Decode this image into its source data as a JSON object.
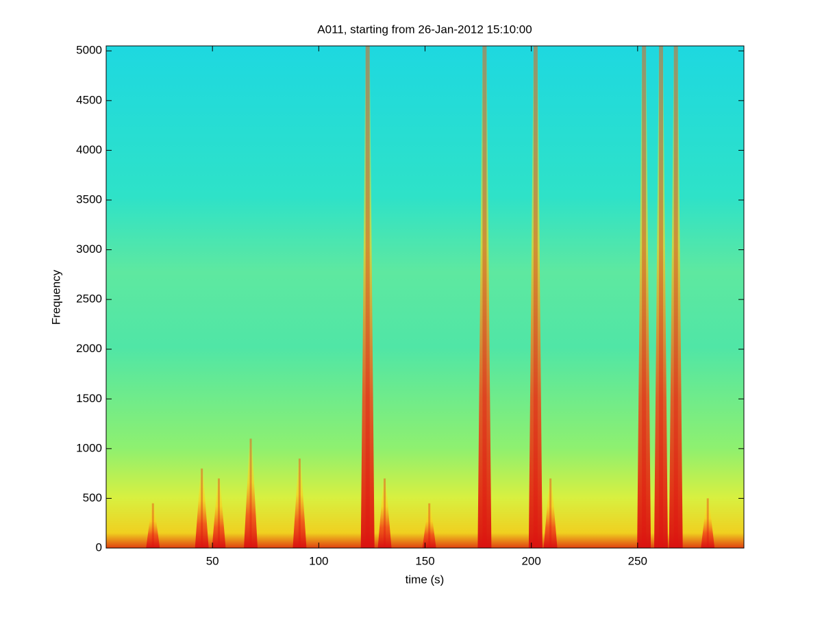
{
  "chart_data": {
    "type": "spectrogram",
    "title": "A011, starting from 26-Jan-2012 15:10:00",
    "x_label": "time (s)",
    "y_label": "Frequency",
    "xlim": [
      0,
      300
    ],
    "ylim": [
      0,
      5050
    ],
    "xticks": [
      50,
      100,
      150,
      200,
      250
    ],
    "yticks": [
      0,
      500,
      1000,
      1500,
      2000,
      2500,
      3000,
      3500,
      4000,
      4500,
      5000
    ],
    "color": "#e01010",
    "x": [
      22,
      45,
      53,
      68,
      91,
      123,
      131,
      152,
      178,
      202,
      209,
      253,
      261,
      268,
      283
    ],
    "values": [
      450,
      800,
      700,
      1100,
      900,
      5050,
      700,
      450,
      5050,
      5050,
      700,
      5050,
      5050,
      5050,
      500
    ]
  }
}
